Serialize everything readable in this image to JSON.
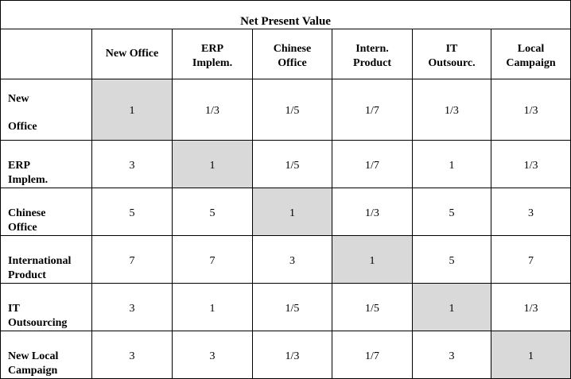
{
  "title": "Net Present Value",
  "columns": [
    [
      "New Office"
    ],
    [
      "ERP",
      "Implem."
    ],
    [
      "Chinese",
      "Office"
    ],
    [
      "Intern.",
      "Product"
    ],
    [
      "IT",
      "Outsourc."
    ],
    [
      "Local",
      "Campaign"
    ]
  ],
  "rows": [
    {
      "label": [
        "New",
        "Office"
      ],
      "values": [
        "1",
        "1/3",
        "1/5",
        "1/7",
        "1/3",
        "1/3"
      ]
    },
    {
      "label": [
        "ERP",
        "Implem."
      ],
      "values": [
        "3",
        "1",
        "1/5",
        "1/7",
        "1",
        "1/3"
      ]
    },
    {
      "label": [
        "Chinese",
        "Office"
      ],
      "values": [
        "5",
        "5",
        "1",
        "1/3",
        "5",
        "3"
      ]
    },
    {
      "label": [
        "International",
        "Product"
      ],
      "values": [
        "7",
        "7",
        "3",
        "1",
        "5",
        "7"
      ]
    },
    {
      "label": [
        "IT",
        "Outsourcing"
      ],
      "values": [
        "3",
        "1",
        "1/5",
        "1/5",
        "1",
        "1/3"
      ]
    },
    {
      "label": [
        "New Local",
        "Campaign"
      ],
      "values": [
        "3",
        "3",
        "1/3",
        "1/7",
        "3",
        "1"
      ]
    }
  ],
  "colors": {
    "diagonal_fill": "#d9d9d9",
    "border": "#000000"
  }
}
